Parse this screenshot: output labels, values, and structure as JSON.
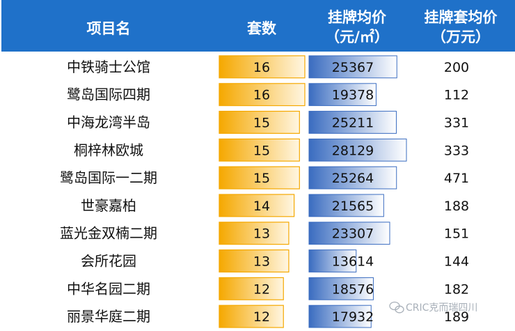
{
  "header": {
    "name": "项目名",
    "count": "套数",
    "price_line1": "挂牌均价",
    "price_line2": "（元/㎡）",
    "total_line1": "挂牌套均价",
    "total_line2": "（万元）"
  },
  "colors": {
    "header_bg": "#1f71c9",
    "count_bar_dark": "#f5a800",
    "count_bar_light": "#fff6e2",
    "price_bar_dark": "#3a6cc0",
    "price_bar_light": "#ffffff"
  },
  "chart_data": {
    "type": "table",
    "columns": [
      "项目名",
      "套数",
      "挂牌均价（元/㎡）",
      "挂牌套均价（万元）"
    ],
    "rows": [
      {
        "name": "中铁骑士公馆",
        "count": "16",
        "price": "25367",
        "total": "200"
      },
      {
        "name": "鹭岛国际四期",
        "count": "16",
        "price": "19378",
        "total": "112"
      },
      {
        "name": "中海龙湾半岛",
        "count": "15",
        "price": "25211",
        "total": "331"
      },
      {
        "name": "桐梓林欧城",
        "count": "15",
        "price": "28129",
        "total": "333"
      },
      {
        "name": "鹭岛国际一二期",
        "count": "15",
        "price": "25264",
        "total": "471"
      },
      {
        "name": "世豪嘉柏",
        "count": "14",
        "price": "21565",
        "total": "188"
      },
      {
        "name": "蓝光金双楠二期",
        "count": "13",
        "price": "23307",
        "total": "151"
      },
      {
        "name": "会所花园",
        "count": "13",
        "price": "13614",
        "total": "144"
      },
      {
        "name": "中华名园二期",
        "count": "12",
        "price": "18576",
        "total": "182"
      },
      {
        "name": "丽景华庭二期",
        "count": "12",
        "price": "17932",
        "total": "189"
      }
    ]
  },
  "watermark": {
    "text": "CRIC克而瑞四川",
    "icon": "wechat-icon"
  }
}
